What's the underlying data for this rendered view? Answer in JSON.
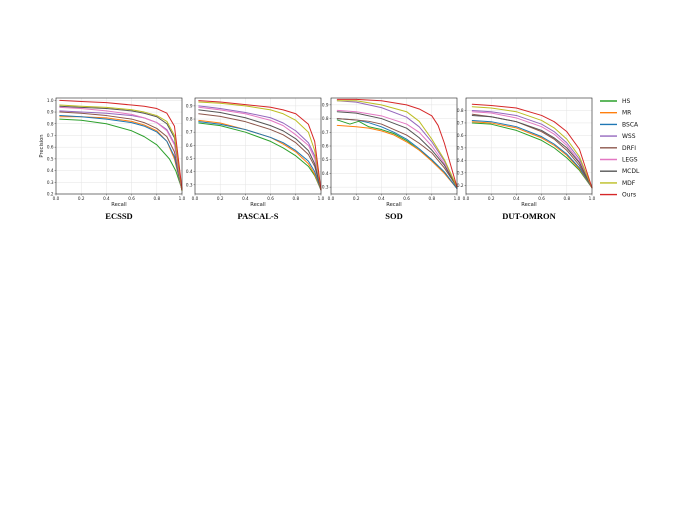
{
  "chart_data": [
    {
      "type": "line",
      "title": "ECSSD",
      "xlabel": "Recall",
      "ylabel": "Precision",
      "xlim": [
        0,
        1
      ],
      "ylim": [
        0.2,
        1.02
      ],
      "xticks": [
        "0.0",
        "0.2",
        "0.4",
        "0.6",
        "0.8",
        "1.0"
      ],
      "yticks": [
        "0.2",
        "0.3",
        "0.4",
        "0.5",
        "0.6",
        "0.7",
        "0.8",
        "0.9",
        "1.0"
      ],
      "grid": true,
      "series": [
        {
          "name": "HS",
          "x": [
            0.03,
            0.2,
            0.4,
            0.6,
            0.7,
            0.8,
            0.9,
            0.95,
            1.0
          ],
          "y": [
            0.84,
            0.83,
            0.8,
            0.74,
            0.69,
            0.62,
            0.5,
            0.4,
            0.24
          ]
        },
        {
          "name": "MR",
          "x": [
            0.03,
            0.2,
            0.4,
            0.6,
            0.7,
            0.8,
            0.88,
            0.94,
            1.0
          ],
          "y": [
            0.86,
            0.86,
            0.85,
            0.82,
            0.79,
            0.74,
            0.65,
            0.5,
            0.23
          ]
        },
        {
          "name": "BSCA",
          "x": [
            0.03,
            0.2,
            0.4,
            0.6,
            0.7,
            0.8,
            0.88,
            0.94,
            1.0
          ],
          "y": [
            0.87,
            0.86,
            0.84,
            0.81,
            0.78,
            0.73,
            0.65,
            0.52,
            0.23
          ]
        },
        {
          "name": "WSS",
          "x": [
            0.03,
            0.2,
            0.4,
            0.6,
            0.7,
            0.8,
            0.88,
            0.94,
            1.0
          ],
          "y": [
            0.91,
            0.9,
            0.89,
            0.87,
            0.85,
            0.81,
            0.75,
            0.63,
            0.24
          ]
        },
        {
          "name": "DRFI",
          "x": [
            0.03,
            0.2,
            0.4,
            0.6,
            0.7,
            0.8,
            0.88,
            0.94,
            1.0
          ],
          "y": [
            0.9,
            0.89,
            0.87,
            0.84,
            0.81,
            0.76,
            0.69,
            0.56,
            0.23
          ]
        },
        {
          "name": "LEGS",
          "x": [
            0.03,
            0.2,
            0.4,
            0.6,
            0.7,
            0.8,
            0.88,
            0.94,
            1.0
          ],
          "y": [
            0.94,
            0.93,
            0.91,
            0.88,
            0.85,
            0.81,
            0.74,
            0.62,
            0.23
          ]
        },
        {
          "name": "MCDL",
          "x": [
            0.03,
            0.2,
            0.4,
            0.6,
            0.7,
            0.8,
            0.88,
            0.94,
            1.0
          ],
          "y": [
            0.95,
            0.94,
            0.93,
            0.91,
            0.89,
            0.86,
            0.8,
            0.68,
            0.23
          ]
        },
        {
          "name": "MDF",
          "x": [
            0.03,
            0.2,
            0.4,
            0.6,
            0.7,
            0.8,
            0.88,
            0.94,
            1.0
          ],
          "y": [
            0.96,
            0.95,
            0.94,
            0.92,
            0.9,
            0.87,
            0.82,
            0.7,
            0.23
          ]
        },
        {
          "name": "Ours",
          "x": [
            0.03,
            0.2,
            0.4,
            0.6,
            0.7,
            0.8,
            0.88,
            0.94,
            1.0
          ],
          "y": [
            1.0,
            0.99,
            0.98,
            0.96,
            0.95,
            0.93,
            0.89,
            0.78,
            0.24
          ]
        }
      ]
    },
    {
      "type": "line",
      "title": "PASCAL-S",
      "xlabel": "Recall",
      "ylabel": "",
      "xlim": [
        0,
        1
      ],
      "ylim": [
        0.23,
        0.96
      ],
      "xticks": [
        "0.0",
        "0.2",
        "0.4",
        "0.6",
        "0.8",
        "1.0"
      ],
      "yticks": [
        "0.3",
        "0.4",
        "0.5",
        "0.6",
        "0.7",
        "0.8",
        "0.9"
      ],
      "grid": true,
      "series": [
        {
          "name": "HS",
          "x": [
            0.03,
            0.2,
            0.4,
            0.6,
            0.7,
            0.8,
            0.9,
            0.95,
            1.0
          ],
          "y": [
            0.77,
            0.75,
            0.7,
            0.63,
            0.58,
            0.52,
            0.44,
            0.37,
            0.26
          ]
        },
        {
          "name": "MR",
          "x": [
            0.03,
            0.2,
            0.4,
            0.6,
            0.7,
            0.8,
            0.9,
            0.95,
            1.0
          ],
          "y": [
            0.79,
            0.77,
            0.72,
            0.66,
            0.61,
            0.55,
            0.46,
            0.38,
            0.26
          ]
        },
        {
          "name": "BSCA",
          "x": [
            0.03,
            0.2,
            0.4,
            0.6,
            0.7,
            0.8,
            0.9,
            0.95,
            1.0
          ],
          "y": [
            0.78,
            0.76,
            0.72,
            0.66,
            0.62,
            0.56,
            0.48,
            0.4,
            0.26
          ]
        },
        {
          "name": "WSS",
          "x": [
            0.03,
            0.2,
            0.4,
            0.6,
            0.7,
            0.8,
            0.9,
            0.95,
            1.0
          ],
          "y": [
            0.9,
            0.88,
            0.85,
            0.81,
            0.77,
            0.71,
            0.62,
            0.52,
            0.26
          ]
        },
        {
          "name": "DRFI",
          "x": [
            0.03,
            0.2,
            0.4,
            0.6,
            0.7,
            0.8,
            0.9,
            0.95,
            1.0
          ],
          "y": [
            0.84,
            0.82,
            0.78,
            0.72,
            0.68,
            0.62,
            0.53,
            0.44,
            0.26
          ]
        },
        {
          "name": "LEGS",
          "x": [
            0.03,
            0.2,
            0.4,
            0.6,
            0.7,
            0.8,
            0.9,
            0.95,
            1.0
          ],
          "y": [
            0.89,
            0.87,
            0.84,
            0.79,
            0.75,
            0.68,
            0.6,
            0.5,
            0.26
          ]
        },
        {
          "name": "MCDL",
          "x": [
            0.03,
            0.2,
            0.4,
            0.6,
            0.7,
            0.8,
            0.9,
            0.95,
            1.0
          ],
          "y": [
            0.87,
            0.85,
            0.81,
            0.75,
            0.71,
            0.65,
            0.56,
            0.46,
            0.26
          ]
        },
        {
          "name": "MDF",
          "x": [
            0.03,
            0.2,
            0.4,
            0.6,
            0.7,
            0.8,
            0.9,
            0.95,
            1.0
          ],
          "y": [
            0.93,
            0.92,
            0.9,
            0.87,
            0.84,
            0.79,
            0.7,
            0.56,
            0.26
          ]
        },
        {
          "name": "Ours",
          "x": [
            0.03,
            0.2,
            0.4,
            0.6,
            0.7,
            0.8,
            0.9,
            0.95,
            1.0
          ],
          "y": [
            0.94,
            0.93,
            0.91,
            0.89,
            0.87,
            0.84,
            0.76,
            0.63,
            0.26
          ]
        }
      ]
    },
    {
      "type": "line",
      "title": "SOD",
      "xlabel": "Recall",
      "ylabel": "",
      "xlim": [
        0,
        1
      ],
      "ylim": [
        0.25,
        0.95
      ],
      "xticks": [
        "0.0",
        "0.2",
        "0.4",
        "0.6",
        "0.8",
        "1.0"
      ],
      "yticks": [
        "0.3",
        "0.4",
        "0.5",
        "0.6",
        "0.7",
        "0.8",
        "0.9"
      ],
      "grid": true,
      "series": [
        {
          "name": "HS",
          "x": [
            0.05,
            0.15,
            0.22,
            0.3,
            0.4,
            0.5,
            0.6,
            0.7,
            0.8,
            0.9,
            1.0
          ],
          "y": [
            0.79,
            0.76,
            0.78,
            0.74,
            0.72,
            0.69,
            0.64,
            0.57,
            0.5,
            0.41,
            0.29
          ]
        },
        {
          "name": "MR",
          "x": [
            0.05,
            0.2,
            0.3,
            0.4,
            0.5,
            0.6,
            0.7,
            0.8,
            0.9,
            1.0
          ],
          "y": [
            0.75,
            0.74,
            0.73,
            0.71,
            0.68,
            0.63,
            0.57,
            0.49,
            0.4,
            0.29
          ]
        },
        {
          "name": "BSCA",
          "x": [
            0.05,
            0.2,
            0.3,
            0.4,
            0.5,
            0.6,
            0.7,
            0.8,
            0.9,
            1.0
          ],
          "y": [
            0.8,
            0.79,
            0.77,
            0.74,
            0.7,
            0.65,
            0.58,
            0.5,
            0.41,
            0.29
          ]
        },
        {
          "name": "WSS",
          "x": [
            0.05,
            0.2,
            0.4,
            0.6,
            0.7,
            0.8,
            0.9,
            1.0
          ],
          "y": [
            0.93,
            0.92,
            0.88,
            0.81,
            0.74,
            0.63,
            0.49,
            0.3
          ]
        },
        {
          "name": "DRFI",
          "x": [
            0.05,
            0.2,
            0.3,
            0.4,
            0.5,
            0.6,
            0.7,
            0.8,
            0.9,
            1.0
          ],
          "y": [
            0.8,
            0.79,
            0.78,
            0.76,
            0.72,
            0.68,
            0.62,
            0.55,
            0.44,
            0.3
          ]
        },
        {
          "name": "LEGS",
          "x": [
            0.05,
            0.2,
            0.4,
            0.6,
            0.7,
            0.8,
            0.9,
            1.0
          ],
          "y": [
            0.86,
            0.85,
            0.82,
            0.76,
            0.7,
            0.6,
            0.47,
            0.3
          ]
        },
        {
          "name": "MCDL",
          "x": [
            0.05,
            0.2,
            0.4,
            0.6,
            0.7,
            0.8,
            0.9,
            1.0
          ],
          "y": [
            0.85,
            0.84,
            0.8,
            0.73,
            0.66,
            0.57,
            0.46,
            0.3
          ]
        },
        {
          "name": "MDF",
          "x": [
            0.05,
            0.2,
            0.4,
            0.6,
            0.7,
            0.8,
            0.9,
            1.0
          ],
          "y": [
            0.93,
            0.93,
            0.9,
            0.85,
            0.78,
            0.65,
            0.5,
            0.3
          ]
        },
        {
          "name": "Ours",
          "x": [
            0.05,
            0.2,
            0.4,
            0.6,
            0.7,
            0.8,
            0.85,
            0.9,
            1.0
          ],
          "y": [
            0.94,
            0.94,
            0.93,
            0.9,
            0.87,
            0.82,
            0.75,
            0.62,
            0.3
          ]
        }
      ]
    },
    {
      "type": "line",
      "title": "DUT-OMRON",
      "xlabel": "Recall",
      "ylabel": "",
      "xlim": [
        0,
        1
      ],
      "ylim": [
        0.13,
        0.9
      ],
      "xticks": [
        "0.0",
        "0.2",
        "0.4",
        "0.6",
        "0.8",
        "1.0"
      ],
      "yticks": [
        "0.2",
        "0.3",
        "0.4",
        "0.5",
        "0.6",
        "0.7",
        "0.8"
      ],
      "grid": true,
      "series": [
        {
          "name": "HS",
          "x": [
            0.05,
            0.2,
            0.4,
            0.6,
            0.7,
            0.8,
            0.9,
            1.0
          ],
          "y": [
            0.7,
            0.69,
            0.64,
            0.56,
            0.5,
            0.42,
            0.32,
            0.18
          ]
        },
        {
          "name": "MR",
          "x": [
            0.05,
            0.2,
            0.4,
            0.6,
            0.7,
            0.8,
            0.9,
            1.0
          ],
          "y": [
            0.71,
            0.7,
            0.66,
            0.58,
            0.52,
            0.44,
            0.33,
            0.18
          ]
        },
        {
          "name": "BSCA",
          "x": [
            0.05,
            0.2,
            0.4,
            0.6,
            0.7,
            0.8,
            0.9,
            1.0
          ],
          "y": [
            0.72,
            0.71,
            0.67,
            0.59,
            0.53,
            0.45,
            0.34,
            0.18
          ]
        },
        {
          "name": "WSS",
          "x": [
            0.05,
            0.2,
            0.4,
            0.6,
            0.7,
            0.8,
            0.9,
            1.0
          ],
          "y": [
            0.8,
            0.79,
            0.76,
            0.69,
            0.63,
            0.54,
            0.41,
            0.18
          ]
        },
        {
          "name": "DRFI",
          "x": [
            0.05,
            0.2,
            0.4,
            0.6,
            0.7,
            0.8,
            0.9,
            1.0
          ],
          "y": [
            0.77,
            0.75,
            0.71,
            0.63,
            0.57,
            0.48,
            0.36,
            0.18
          ]
        },
        {
          "name": "LEGS",
          "x": [
            0.05,
            0.2,
            0.4,
            0.6,
            0.7,
            0.8,
            0.9,
            1.0
          ],
          "y": [
            0.79,
            0.78,
            0.74,
            0.67,
            0.61,
            0.52,
            0.39,
            0.18
          ]
        },
        {
          "name": "MCDL",
          "x": [
            0.05,
            0.2,
            0.4,
            0.6,
            0.7,
            0.8,
            0.9,
            1.0
          ],
          "y": [
            0.76,
            0.75,
            0.71,
            0.64,
            0.58,
            0.5,
            0.38,
            0.18
          ]
        },
        {
          "name": "MDF",
          "x": [
            0.05,
            0.2,
            0.4,
            0.6,
            0.7,
            0.8,
            0.9,
            1.0
          ],
          "y": [
            0.83,
            0.82,
            0.79,
            0.72,
            0.66,
            0.57,
            0.43,
            0.18
          ]
        },
        {
          "name": "Ours",
          "x": [
            0.05,
            0.2,
            0.4,
            0.6,
            0.7,
            0.8,
            0.9,
            1.0
          ],
          "y": [
            0.85,
            0.84,
            0.82,
            0.76,
            0.71,
            0.63,
            0.49,
            0.18
          ]
        }
      ]
    }
  ],
  "legend": {
    "placement": "right",
    "entries": [
      {
        "label": "HS",
        "color": "#2ca02c"
      },
      {
        "label": "MR",
        "color": "#ff7f0e"
      },
      {
        "label": "BSCA",
        "color": "#1f77b4"
      },
      {
        "label": "WSS",
        "color": "#9467bd"
      },
      {
        "label": "DRFI",
        "color": "#8c564b"
      },
      {
        "label": "LEGS",
        "color": "#e377c2"
      },
      {
        "label": "MCDL",
        "color": "#555555"
      },
      {
        "label": "MDF",
        "color": "#bcbd22"
      },
      {
        "label": "Ours",
        "color": "#d62728"
      }
    ]
  }
}
